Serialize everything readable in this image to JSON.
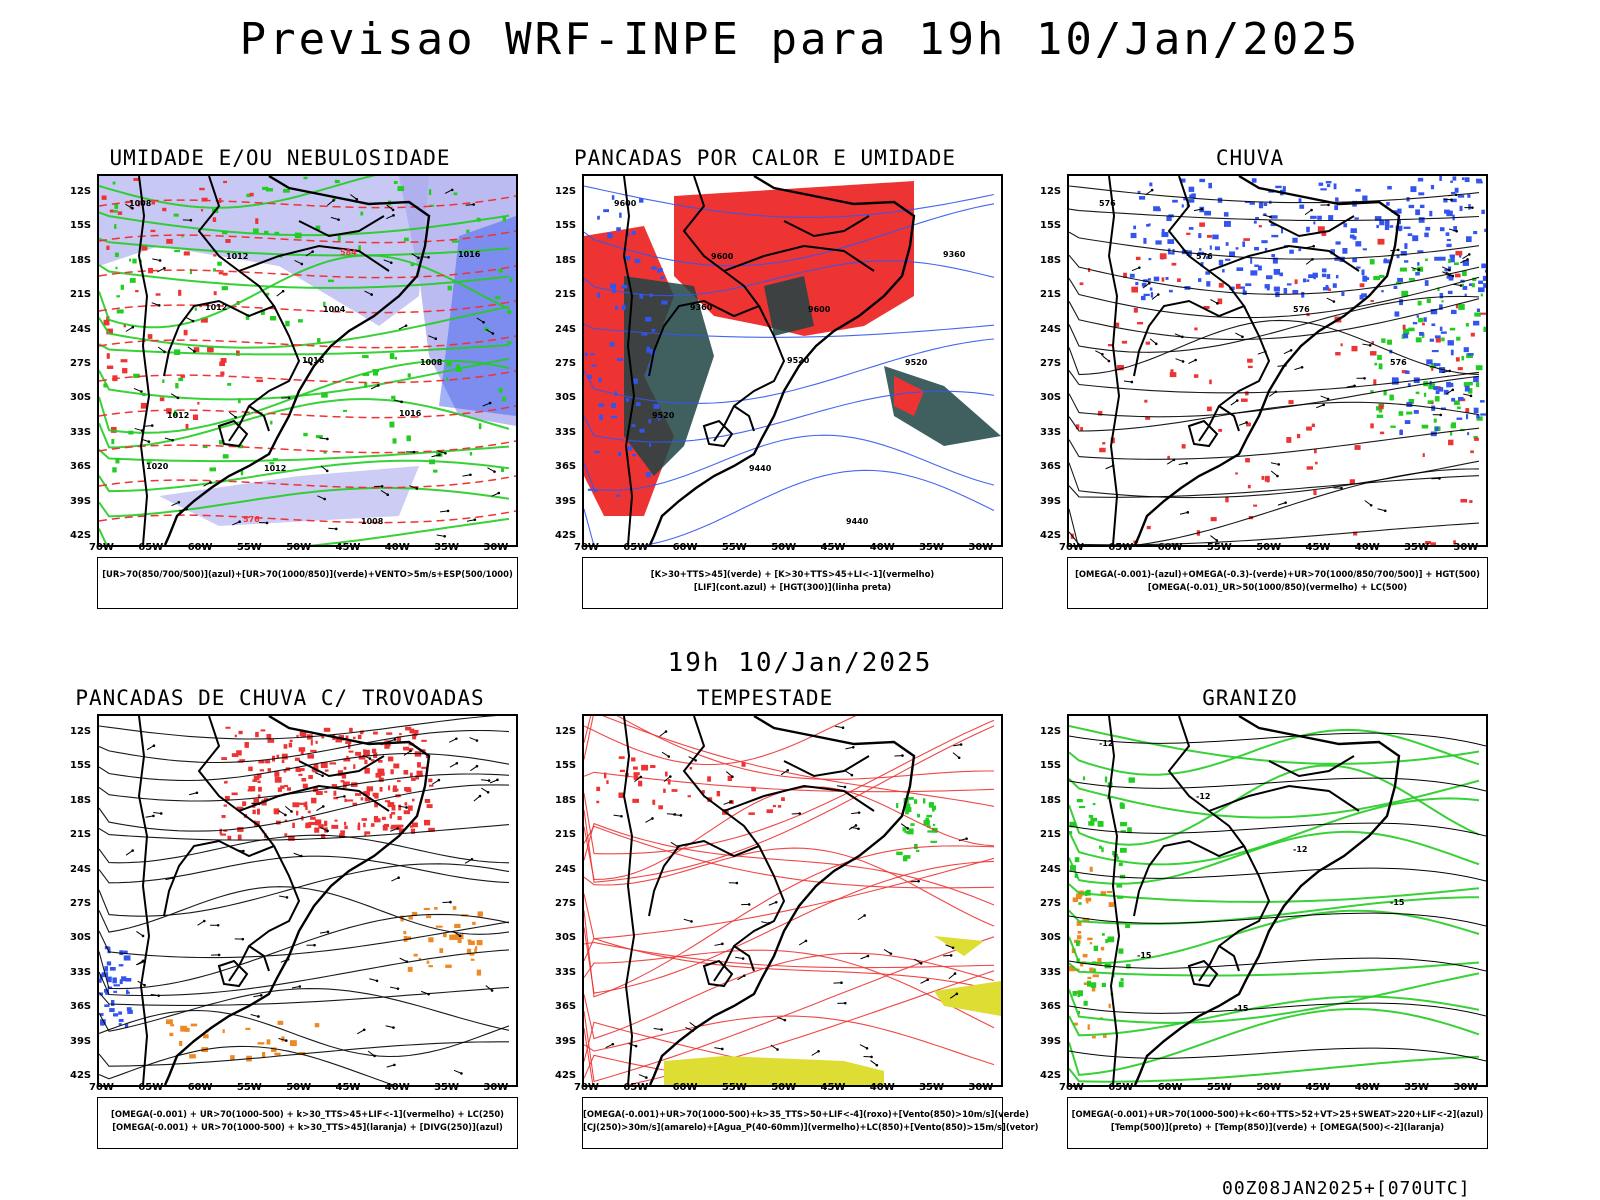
{
  "header": {
    "title": "Previsao WRF-INPE  para 19h 10/Jan/2025"
  },
  "middle_title": "19h 10/Jan/2025",
  "footer": {
    "stamp": "00Z08JAN2025+[070UTC]"
  },
  "axes": {
    "lat_labels": [
      "12S",
      "15S",
      "18S",
      "21S",
      "24S",
      "27S",
      "30S",
      "33S",
      "36S",
      "39S",
      "42S"
    ],
    "lon_labels": [
      "70W",
      "65W",
      "60W",
      "55W",
      "50W",
      "45W",
      "40W",
      "35W",
      "30W"
    ]
  },
  "colors": {
    "blue": "#3355ee",
    "lilac": "#aaaaee",
    "green": "#22cc22",
    "red": "#ee3333",
    "darkteal": "#1f4444",
    "orange": "#ee8822",
    "yellow": "#dddd33",
    "purple": "#aa22cc",
    "black": "#000000"
  },
  "panels": [
    {
      "title": "UMIDADE E/OU NEBULOSIDADE",
      "legend": [
        "[UR>70(850/700/500)](azul)+[UR>70(1000/850)](verde)+VENTO>5m/s+ESP(500/1000)"
      ],
      "contour_labels": [
        "1008",
        "1012",
        "1004",
        "1008",
        "1012",
        "1012",
        "1008",
        "1016",
        "1012",
        "1016",
        "1016",
        "1020",
        "576",
        "584"
      ]
    },
    {
      "title": "PANCADAS POR CALOR E UMIDADE",
      "legend": [
        "[K>30+TTS>45](verde) + [K>30+TTS>45+LI<-1](vermelho)",
        "[LIF](cont.azul) + [HGT(300)](linha preta)"
      ],
      "contour_labels": [
        "9600",
        "9600",
        "9600",
        "9520",
        "9520",
        "9440",
        "9440",
        "9360",
        "9360",
        "9520"
      ]
    },
    {
      "title": "CHUVA",
      "legend": [
        "[OMEGA(-0.001)-(azul)+OMEGA(-0.3)-(verde)+UR>70(1000/850/700/500)] + HGT(500)",
        "[OMEGA(-0.01)_UR>50(1000/850)(vermelho) + LC(500)"
      ],
      "contour_labels": [
        "576",
        "576",
        "576",
        "576"
      ]
    },
    {
      "title": "PANCADAS DE CHUVA C/ TROVOADAS",
      "legend": [
        "[OMEGA(-0.001) + UR>70(1000-500) + k>30_TTS>45+LIF<-1](vermelho) + LC(250)",
        "[OMEGA(-0.001) + UR>70(1000-500) + k>30_TTS>45](laranja) + [DIVG(250)](azul)"
      ],
      "contour_labels": []
    },
    {
      "title": "TEMPESTADE",
      "legend": [
        "[OMEGA(-0.001)+UR>70(1000-500)+k>35_TTS>50+LIF<-4](roxo)+[Vento(850)>10m/s](verde)",
        "[CJ(250)>30m/s](amarelo)+[Agua_P(40-60mm)](vermelho)+LC(850)+[Vento(850)>15m/s](vetor)"
      ],
      "contour_labels": []
    },
    {
      "title": "GRANIZO",
      "legend": [
        "[OMEGA(-0.001)+UR>70(1000-500)+k<60+TTS>52+VT>25+SWEAT>220+LIF<-2](azul)",
        "[Temp(500)](preto) + [Temp(850)](verde) + [OMEGA(500)<-2](laranja)"
      ],
      "contour_labels": [
        "-12",
        "-12",
        "-12",
        "-15",
        "-15",
        "-15"
      ]
    }
  ]
}
